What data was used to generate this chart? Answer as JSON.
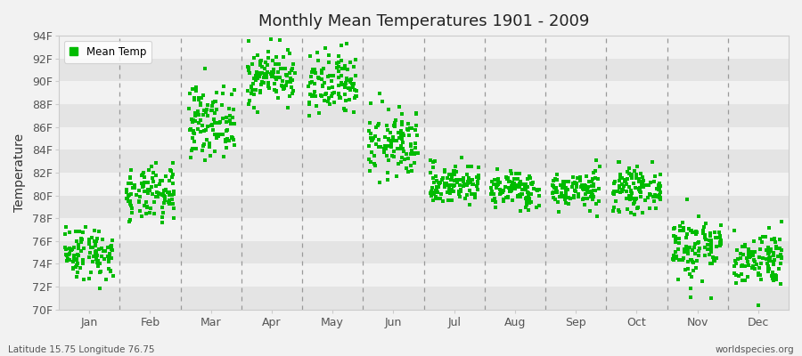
{
  "title": "Monthly Mean Temperatures 1901 - 2009",
  "ylabel": "Temperature",
  "ylim": [
    70,
    94
  ],
  "yticks": [
    70,
    72,
    74,
    76,
    78,
    80,
    82,
    84,
    86,
    88,
    90,
    92,
    94
  ],
  "ytick_labels": [
    "70F",
    "72F",
    "74F",
    "76F",
    "78F",
    "80F",
    "82F",
    "84F",
    "86F",
    "88F",
    "90F",
    "92F",
    "94F"
  ],
  "months": [
    "Jan",
    "Feb",
    "Mar",
    "Apr",
    "May",
    "Jun",
    "Jul",
    "Aug",
    "Sep",
    "Oct",
    "Nov",
    "Dec"
  ],
  "footer_left": "Latitude 15.75 Longitude 76.75",
  "footer_right": "worldspecies.org",
  "marker_color": "#00bb00",
  "legend_label": "Mean Temp",
  "fig_bg_color": "#f2f2f2",
  "plot_bg_color": "#f2f2f2",
  "stripe_light": "#f2f2f2",
  "stripe_dark": "#e4e4e4",
  "n_years": 109,
  "monthly_means": [
    75.0,
    80.0,
    86.5,
    90.5,
    89.5,
    84.5,
    81.0,
    80.5,
    80.5,
    80.5,
    75.5,
    74.5
  ],
  "monthly_stds": [
    1.2,
    1.2,
    1.5,
    1.2,
    1.5,
    1.5,
    0.9,
    0.8,
    0.8,
    0.9,
    1.5,
    1.2
  ],
  "seed": 42,
  "dashed_line_color": "#999999",
  "spine_color": "#cccccc"
}
